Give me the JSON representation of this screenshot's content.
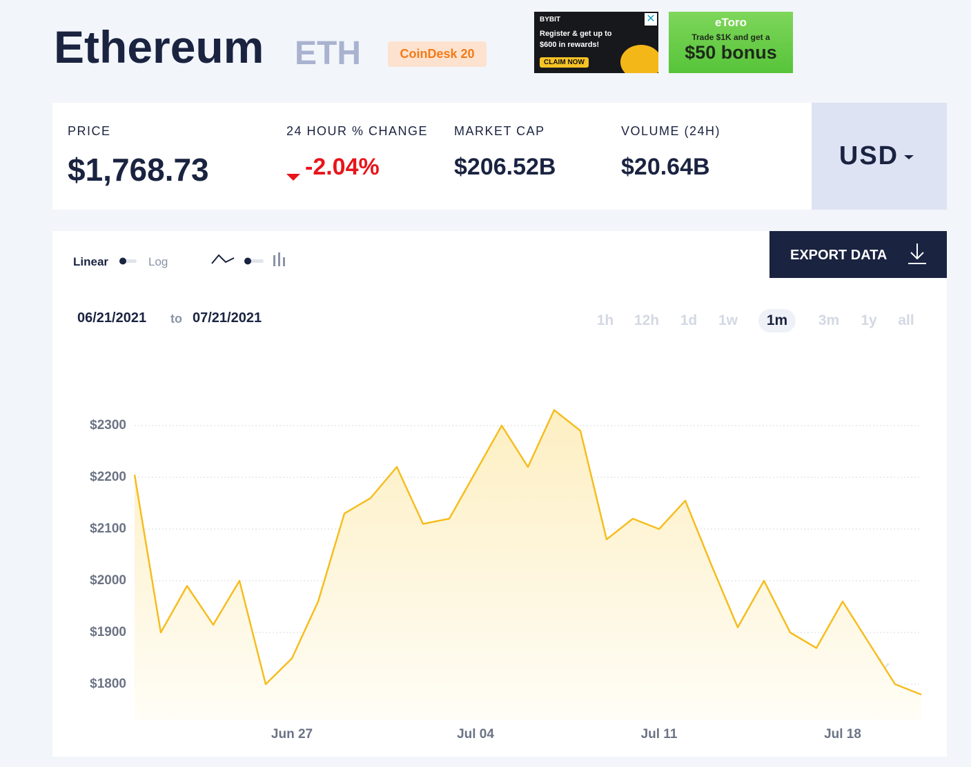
{
  "header": {
    "name": "Ethereum",
    "symbol": "ETH",
    "badge": "CoinDesk 20"
  },
  "ads": [
    {
      "brand": "BYBIT",
      "text": "Register & get up to $600 in rewards!",
      "button": "CLAIM NOW"
    },
    {
      "brand": "eToro",
      "text": "Trade $1K and get a",
      "highlight": "$50 bonus"
    }
  ],
  "stats": [
    {
      "label": "PRICE",
      "value": "$1,768.73"
    },
    {
      "label": "24 HOUR % CHANGE",
      "value": "-2.04%"
    },
    {
      "label": "MARKET CAP",
      "value": "$206.52B"
    },
    {
      "label": "VOLUME (24H)",
      "value": "$20.64B"
    }
  ],
  "currency": "USD",
  "controls": {
    "scale_options": [
      "Linear",
      "Log"
    ],
    "export": "EXPORT DATA",
    "date_from": "06/21/2021",
    "date_sep": "to",
    "date_to": "07/21/2021",
    "ranges": [
      "1h",
      "12h",
      "1d",
      "1w",
      "1m",
      "3m",
      "1y",
      "all"
    ],
    "selected_range": 4
  },
  "chart_data": {
    "type": "line",
    "x": [
      "Jun 21",
      "Jun 22",
      "Jun 23",
      "Jun 24",
      "Jun 25",
      "Jun 26",
      "Jun 27",
      "Jun 28",
      "Jun 29",
      "Jun 30",
      "Jul 01",
      "Jul 02",
      "Jul 03",
      "Jul 04",
      "Jul 05",
      "Jul 06",
      "Jul 07",
      "Jul 08",
      "Jul 09",
      "Jul 10",
      "Jul 11",
      "Jul 12",
      "Jul 13",
      "Jul 14",
      "Jul 15",
      "Jul 16",
      "Jul 17",
      "Jul 18",
      "Jul 19",
      "Jul 20",
      "Jul 21"
    ],
    "values": [
      2205,
      1900,
      1990,
      1915,
      2000,
      1800,
      1850,
      1960,
      2130,
      2160,
      2220,
      2110,
      2120,
      2210,
      2300,
      2220,
      2330,
      2290,
      2080,
      2120,
      2100,
      2155,
      2030,
      1910,
      2000,
      1900,
      1870,
      1960,
      1880,
      1800,
      1780
    ],
    "color": "#f5bd1f",
    "xlim": [
      "Jun 21",
      "Jul 21"
    ],
    "xticks": [
      "Jun 27",
      "Jul 04",
      "Jul 11",
      "Jul 18"
    ],
    "ylim": [
      1730,
      2400
    ],
    "yticks": [
      {
        "value": 1800,
        "label": "$1800"
      },
      {
        "value": 1900,
        "label": "$1900"
      },
      {
        "value": 2000,
        "label": "$2000"
      },
      {
        "value": 2100,
        "label": "$2100"
      },
      {
        "value": 2200,
        "label": "$2200"
      },
      {
        "value": 2300,
        "label": "$2300"
      }
    ],
    "grid": true
  },
  "watermark": "coindesk"
}
